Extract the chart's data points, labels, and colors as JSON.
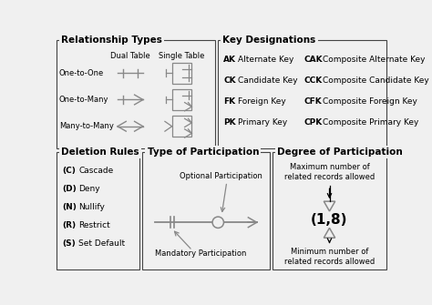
{
  "bg_color": "#f0f0f0",
  "border_color": "#444444",
  "line_color": "#888888",
  "symbol_color": "#888888",
  "text_color": "#000000",
  "title_fontsize": 7.5,
  "label_fontsize": 6.5,
  "small_fontsize": 6.0,
  "rel_title": "Relationship Types",
  "rel_rows": [
    "One-to-One",
    "One-to-Many",
    "Many-to-Many"
  ],
  "rel_col1": "Dual Table",
  "rel_col2": "Single Table",
  "key_title": "Key Designations",
  "key_items": [
    [
      "AK",
      "Alternate Key",
      "CAK",
      "Composite Alternate Key"
    ],
    [
      "CK",
      "Candidate Key",
      "CCK",
      "Composite Candidate Key"
    ],
    [
      "FK",
      "Foreign Key",
      "CFK",
      "Composite Foreign Key"
    ],
    [
      "PK",
      "Primary Key",
      "CPK",
      "Composite Primary Key"
    ]
  ],
  "del_title": "Deletion Rules",
  "del_items": [
    [
      "(C)",
      "Cascade"
    ],
    [
      "(D)",
      "Deny"
    ],
    [
      "(N)",
      "Nullify"
    ],
    [
      "(R)",
      "Restrict"
    ],
    [
      "(S)",
      "Set Default"
    ]
  ],
  "part_title": "Type of Participation",
  "part_optional": "Optional Participation",
  "part_mandatory": "Mandatory Participation",
  "deg_title": "Degree of Participation",
  "deg_max": "Maximum number of\nrelated records allowed",
  "deg_min": "Minimum number of\nrelated records allowed",
  "deg_value": "(1,8)"
}
